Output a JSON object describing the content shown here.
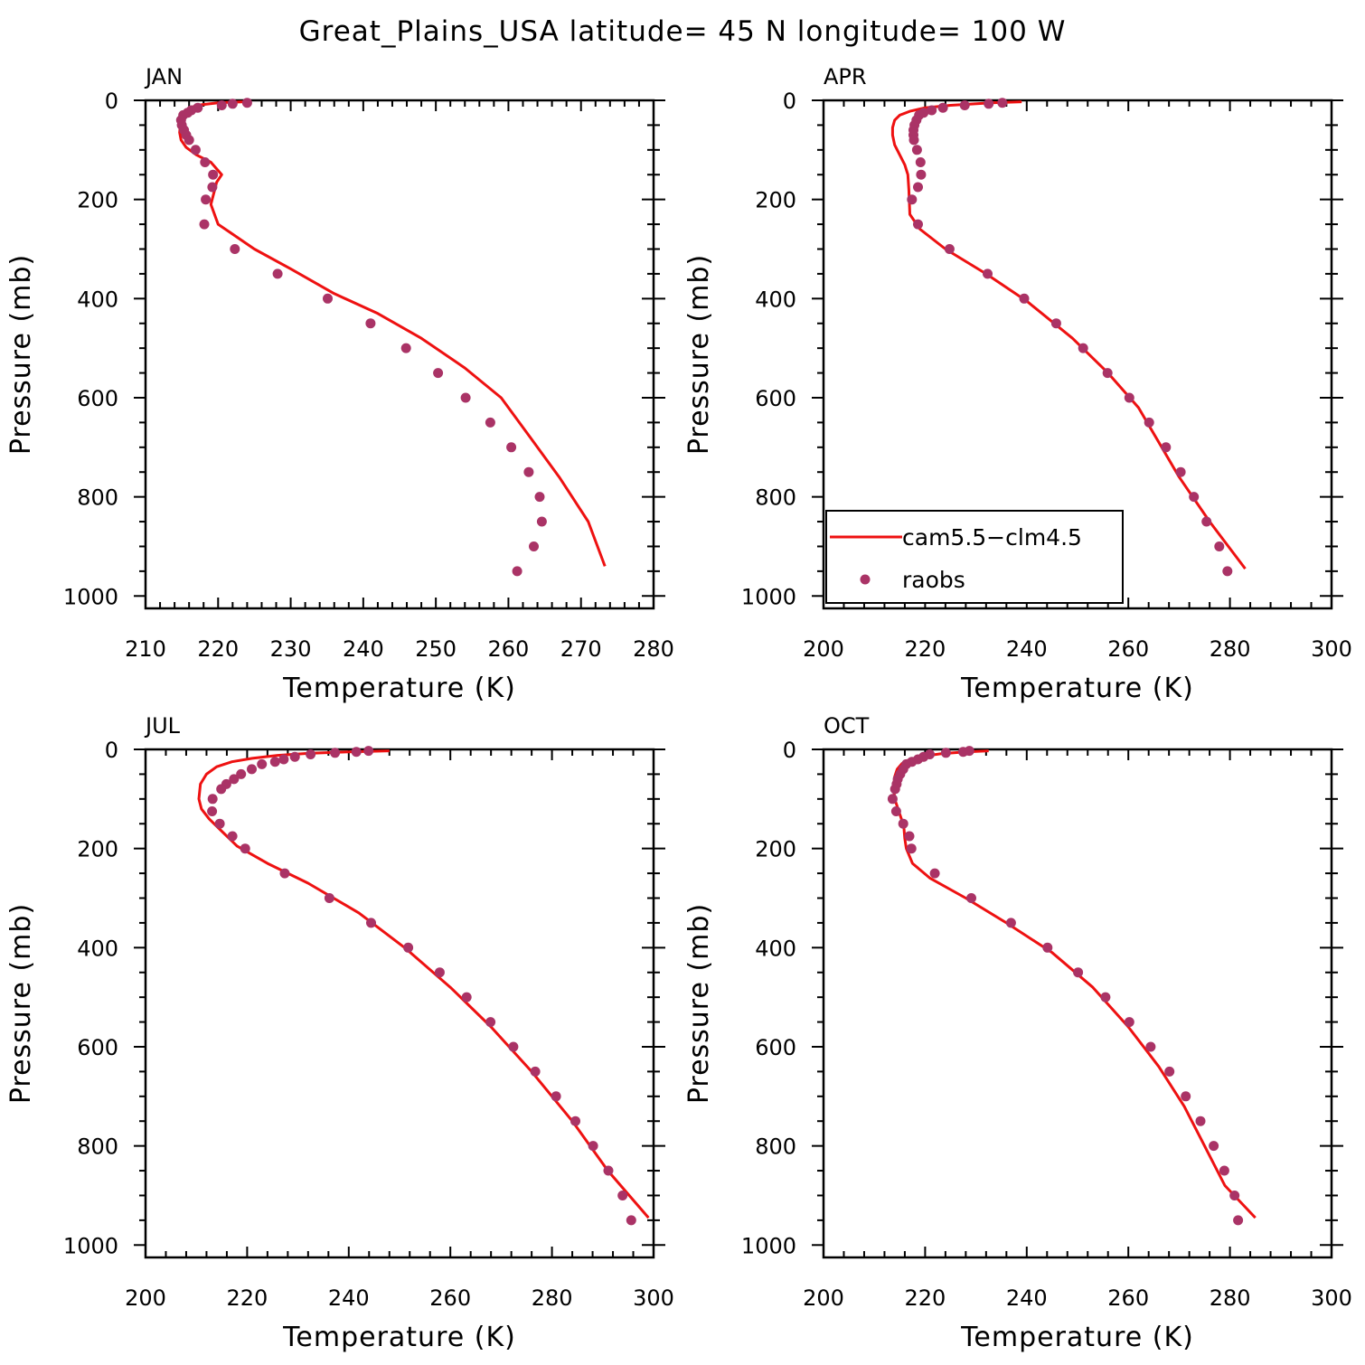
{
  "title": "Great_Plains_USA  latitude= 45 N longitude= 100 W",
  "colors": {
    "model": "#ee1111",
    "obs": "#aa3366",
    "axis": "#000000",
    "background": "#ffffff"
  },
  "legend": {
    "placement": "inside APR panel, lower-left",
    "model_label": "cam5.5−clm4.5",
    "obs_label": "raobs"
  },
  "chart_data": [
    {
      "type": "line",
      "panel": "JAN",
      "title": "JAN",
      "xlabel": "Temperature (K)",
      "ylabel": "Pressure (mb)",
      "xlim": [
        210,
        280
      ],
      "ylim": [
        1025,
        0
      ],
      "xticks": [
        210,
        220,
        230,
        240,
        250,
        260,
        270,
        280
      ],
      "yticks": [
        0,
        200,
        400,
        600,
        800,
        1000
      ],
      "xtick_labels": [
        "210",
        "220",
        "230",
        "240",
        "250",
        "260",
        "270",
        "280"
      ],
      "ytick_labels": [
        "0",
        "200",
        "400",
        "600",
        "800",
        "1000"
      ],
      "series": [
        {
          "name": "cam5.5−clm4.5",
          "style": "line",
          "x": [
            223.5,
            220,
            217,
            215.5,
            215,
            214.8,
            214.7,
            214.9,
            215.6,
            217,
            219,
            220.5,
            219.8,
            219,
            220,
            222,
            225,
            230,
            236,
            242,
            248,
            254,
            259,
            263,
            267,
            271,
            273.3
          ],
          "y": [
            3,
            5,
            10,
            20,
            35,
            50,
            65,
            80,
            95,
            110,
            125,
            150,
            165,
            210,
            250,
            270,
            300,
            340,
            390,
            430,
            480,
            540,
            600,
            680,
            760,
            850,
            940
          ]
        },
        {
          "name": "raobs",
          "style": "markers",
          "x": [
            224,
            222,
            220.5,
            217.2,
            216.3,
            215.8,
            215.2,
            214.9,
            215,
            215.3,
            215.6,
            216,
            216.9,
            218.2,
            219.3,
            219.2,
            218.3,
            218.1,
            222.3,
            228.2,
            235.1,
            241,
            245.9,
            250.3,
            254.1,
            257.5,
            260.4,
            262.8,
            264.3,
            264.6,
            263.5,
            261.2
          ],
          "y": [
            5,
            7,
            10,
            15,
            20,
            25,
            30,
            40,
            50,
            60,
            70,
            80,
            100,
            125,
            150,
            175,
            200,
            250,
            300,
            350,
            400,
            450,
            500,
            550,
            600,
            650,
            700,
            750,
            800,
            850,
            900,
            950
          ]
        }
      ]
    },
    {
      "type": "line",
      "panel": "APR",
      "title": "APR",
      "xlabel": "Temperature (K)",
      "ylabel": "Pressure (mb)",
      "xlim": [
        200,
        300
      ],
      "ylim": [
        1025,
        0
      ],
      "xticks": [
        200,
        220,
        240,
        260,
        280,
        300
      ],
      "yticks": [
        0,
        200,
        400,
        600,
        800,
        1000
      ],
      "xtick_labels": [
        "200",
        "220",
        "240",
        "260",
        "280",
        "300"
      ],
      "ytick_labels": [
        "0",
        "200",
        "400",
        "600",
        "800",
        "1000"
      ],
      "series": [
        {
          "name": "cam5.5−clm4.5",
          "style": "line",
          "x": [
            239,
            233,
            225,
            220,
            217,
            215,
            214,
            213.6,
            213.6,
            214,
            215,
            216,
            216.6,
            216.8,
            217,
            219,
            224,
            232,
            240,
            249,
            256,
            262,
            266,
            270,
            276,
            283
          ],
          "y": [
            3,
            5,
            10,
            15,
            22,
            30,
            40,
            55,
            70,
            90,
            110,
            130,
            150,
            180,
            230,
            260,
            300,
            350,
            405,
            480,
            550,
            620,
            690,
            760,
            850,
            945
          ]
        },
        {
          "name": "raobs",
          "style": "markers",
          "x": [
            235.2,
            232.5,
            227.8,
            223.5,
            221.3,
            219.7,
            218.8,
            218.3,
            217.9,
            217.7,
            217.7,
            217.8,
            218.4,
            219.1,
            219.2,
            218.6,
            217.4,
            218.6,
            224.8,
            232.3,
            239.5,
            245.8,
            251.1,
            255.9,
            260.2,
            264.1,
            267.4,
            270.3,
            272.9,
            275.4,
            277.9,
            279.5
          ],
          "y": [
            5,
            7,
            10,
            15,
            20,
            25,
            30,
            40,
            50,
            60,
            70,
            80,
            100,
            125,
            150,
            175,
            200,
            250,
            300,
            350,
            400,
            450,
            500,
            550,
            600,
            650,
            700,
            750,
            800,
            850,
            900,
            950
          ]
        }
      ]
    },
    {
      "type": "line",
      "panel": "JUL",
      "title": "JUL",
      "xlabel": "Temperature (K)",
      "ylabel": "Pressure (mb)",
      "xlim": [
        200,
        300
      ],
      "ylim": [
        1025,
        0
      ],
      "xticks": [
        200,
        220,
        240,
        260,
        280,
        300
      ],
      "yticks": [
        0,
        200,
        400,
        600,
        800,
        1000
      ],
      "xtick_labels": [
        "200",
        "220",
        "240",
        "260",
        "280",
        "300"
      ],
      "ytick_labels": [
        "0",
        "200",
        "400",
        "600",
        "800",
        "1000"
      ],
      "series": [
        {
          "name": "cam5.5−clm4.5",
          "style": "line",
          "x": [
            248,
            240,
            232,
            226,
            221,
            217,
            214,
            212,
            210.8,
            210.5,
            211,
            212.5,
            215,
            218,
            224,
            232,
            242,
            251,
            260,
            268,
            276,
            284,
            291,
            299
          ],
          "y": [
            3,
            5,
            8,
            12,
            18,
            25,
            35,
            50,
            70,
            100,
            120,
            140,
            165,
            195,
            230,
            270,
            330,
            400,
            480,
            560,
            650,
            750,
            850,
            945
          ]
        },
        {
          "name": "raobs",
          "style": "markers",
          "x": [
            243.9,
            241.5,
            237.3,
            232.5,
            229.4,
            227.2,
            225.5,
            222.9,
            220.9,
            218.8,
            217.4,
            215.9,
            214.9,
            213.2,
            213.1,
            214.6,
            217.1,
            219.6,
            227.4,
            236.2,
            244.4,
            251.7,
            257.9,
            263.2,
            267.9,
            272.4,
            276.7,
            280.8,
            284.6,
            288.1,
            291.1,
            293.9,
            295.6
          ],
          "y": [
            3,
            5,
            7,
            10,
            15,
            20,
            25,
            30,
            40,
            50,
            60,
            70,
            80,
            100,
            125,
            150,
            175,
            200,
            250,
            300,
            350,
            400,
            450,
            500,
            550,
            600,
            650,
            700,
            750,
            800,
            850,
            900,
            950
          ]
        }
      ]
    },
    {
      "type": "line",
      "panel": "OCT",
      "title": "OCT",
      "xlabel": "Temperature (K)",
      "ylabel": "Pressure (mb)",
      "xlim": [
        200,
        300
      ],
      "ylim": [
        1025,
        0
      ],
      "xticks": [
        200,
        220,
        240,
        260,
        280,
        300
      ],
      "yticks": [
        0,
        200,
        400,
        600,
        800,
        1000
      ],
      "xtick_labels": [
        "200",
        "220",
        "240",
        "260",
        "280",
        "300"
      ],
      "ytick_labels": [
        "0",
        "200",
        "400",
        "600",
        "800",
        "1000"
      ],
      "series": [
        {
          "name": "cam5.5−clm4.5",
          "style": "line",
          "x": [
            232.5,
            228,
            223,
            219.5,
            217,
            215.5,
            214.5,
            214,
            213.8,
            214,
            215,
            215.8,
            216,
            216.3,
            217.5,
            221,
            228,
            236,
            245,
            253,
            260,
            266,
            271,
            275,
            279,
            285
          ],
          "y": [
            3,
            5,
            9,
            14,
            20,
            28,
            40,
            55,
            75,
            100,
            130,
            155,
            180,
            200,
            230,
            260,
            300,
            350,
            410,
            480,
            560,
            640,
            720,
            800,
            880,
            945
          ]
        },
        {
          "name": "raobs",
          "style": "markers",
          "x": [
            228.7,
            227.5,
            224.1,
            220.9,
            219.7,
            218.6,
            217.4,
            216.3,
            215.7,
            215.1,
            214.6,
            214.4,
            214.1,
            213.6,
            214.3,
            215.7,
            216.9,
            217.3,
            221.9,
            229.1,
            236.9,
            244.1,
            250.1,
            255.5,
            260.2,
            264.4,
            268.1,
            271.3,
            274.2,
            276.8,
            278.9,
            280.9,
            281.6
          ],
          "y": [
            3,
            5,
            7,
            10,
            15,
            20,
            25,
            30,
            40,
            50,
            60,
            70,
            80,
            100,
            125,
            150,
            175,
            200,
            250,
            300,
            350,
            400,
            450,
            500,
            550,
            600,
            650,
            700,
            750,
            800,
            850,
            900,
            950
          ]
        }
      ]
    }
  ]
}
